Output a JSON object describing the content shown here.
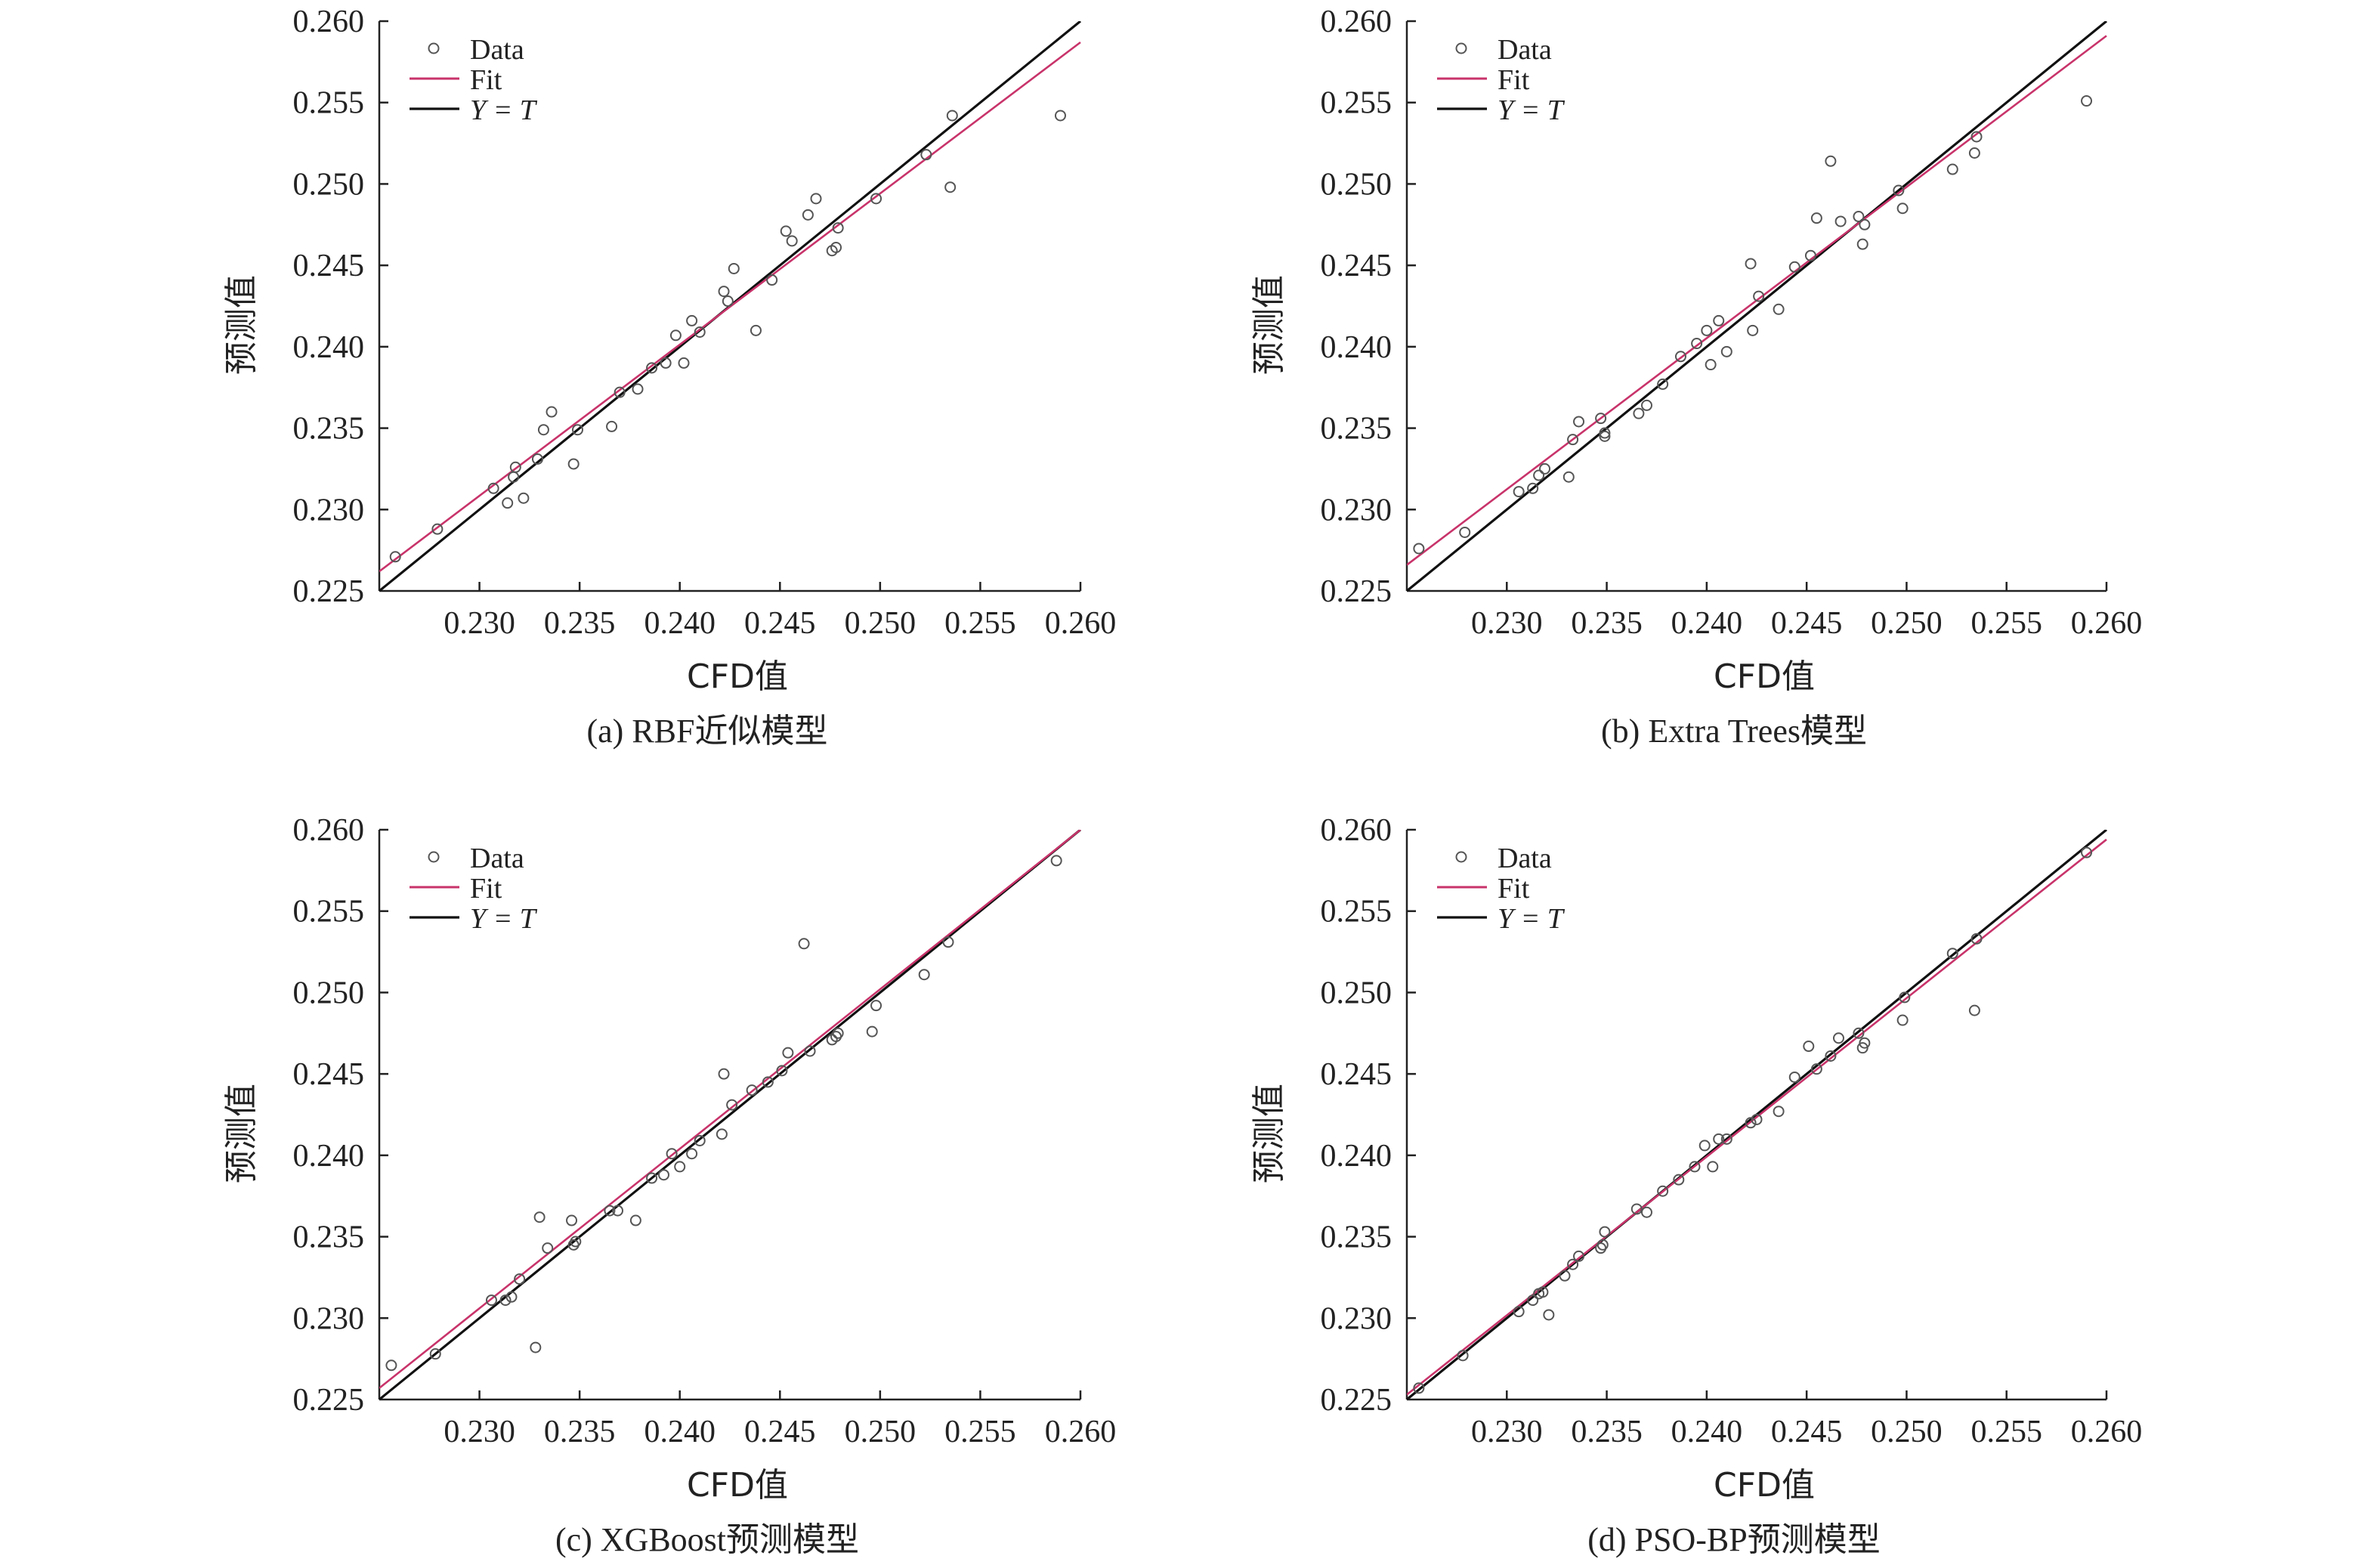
{
  "legend": {
    "data_label": "Data",
    "fit_label": "Fit",
    "yt_label": "Y = T"
  },
  "colors": {
    "fit": "#c8336a",
    "identity": "#111111",
    "points": "#555555"
  },
  "chart_data": [
    {
      "type": "scatter",
      "caption": "(a) RBF近似模型",
      "xlabel": "CFD值",
      "ylabel": "预测值",
      "xlim": [
        0.225,
        0.26
      ],
      "ylim": [
        0.225,
        0.26
      ],
      "xticks": [
        "0.230",
        "0.235",
        "0.240",
        "0.245",
        "0.250",
        "0.255",
        "0.260"
      ],
      "yticks": [
        "0.225",
        "0.230",
        "0.235",
        "0.240",
        "0.245",
        "0.250",
        "0.255",
        "0.260"
      ],
      "fit_line": {
        "x": [
          0.225,
          0.26
        ],
        "y": [
          0.2262,
          0.2587
        ]
      },
      "points": [
        [
          0.2258,
          0.2271
        ],
        [
          0.2279,
          0.2288
        ],
        [
          0.2307,
          0.2313
        ],
        [
          0.2314,
          0.2304
        ],
        [
          0.2317,
          0.232
        ],
        [
          0.2318,
          0.2326
        ],
        [
          0.2322,
          0.2307
        ],
        [
          0.2329,
          0.2331
        ],
        [
          0.2332,
          0.2349
        ],
        [
          0.2336,
          0.236
        ],
        [
          0.2347,
          0.2328
        ],
        [
          0.2349,
          0.2349
        ],
        [
          0.2366,
          0.2351
        ],
        [
          0.237,
          0.2372
        ],
        [
          0.2379,
          0.2374
        ],
        [
          0.2386,
          0.2387
        ],
        [
          0.2393,
          0.239
        ],
        [
          0.2398,
          0.2407
        ],
        [
          0.2402,
          0.239
        ],
        [
          0.2406,
          0.2416
        ],
        [
          0.241,
          0.2409
        ],
        [
          0.2422,
          0.2434
        ],
        [
          0.2424,
          0.2428
        ],
        [
          0.2427,
          0.2448
        ],
        [
          0.2438,
          0.241
        ],
        [
          0.2446,
          0.2441
        ],
        [
          0.2453,
          0.2471
        ],
        [
          0.2456,
          0.2465
        ],
        [
          0.2464,
          0.2481
        ],
        [
          0.2468,
          0.2491
        ],
        [
          0.2476,
          0.2459
        ],
        [
          0.2478,
          0.2461
        ],
        [
          0.2479,
          0.2473
        ],
        [
          0.2498,
          0.2491
        ],
        [
          0.2523,
          0.2518
        ],
        [
          0.2535,
          0.2498
        ],
        [
          0.2536,
          0.2542
        ],
        [
          0.259,
          0.2542
        ]
      ]
    },
    {
      "type": "scatter",
      "caption": "(b) Extra Trees模型",
      "xlabel": "CFD值",
      "ylabel": "预测值",
      "xlim": [
        0.225,
        0.26
      ],
      "ylim": [
        0.225,
        0.26
      ],
      "xticks": [
        "0.230",
        "0.235",
        "0.240",
        "0.245",
        "0.250",
        "0.255",
        "0.260"
      ],
      "yticks": [
        "0.225",
        "0.230",
        "0.235",
        "0.240",
        "0.245",
        "0.250",
        "0.255",
        "0.260"
      ],
      "fit_line": {
        "x": [
          0.225,
          0.26
        ],
        "y": [
          0.2266,
          0.2591
        ]
      },
      "points": [
        [
          0.2256,
          0.2276
        ],
        [
          0.2279,
          0.2286
        ],
        [
          0.2306,
          0.2311
        ],
        [
          0.2313,
          0.2313
        ],
        [
          0.2316,
          0.2321
        ],
        [
          0.2319,
          0.2325
        ],
        [
          0.2331,
          0.232
        ],
        [
          0.2333,
          0.2343
        ],
        [
          0.2336,
          0.2354
        ],
        [
          0.2347,
          0.2356
        ],
        [
          0.2349,
          0.2347
        ],
        [
          0.2349,
          0.2345
        ],
        [
          0.2366,
          0.2359
        ],
        [
          0.237,
          0.2364
        ],
        [
          0.2378,
          0.2377
        ],
        [
          0.2387,
          0.2394
        ],
        [
          0.2395,
          0.2402
        ],
        [
          0.24,
          0.241
        ],
        [
          0.2402,
          0.2389
        ],
        [
          0.2406,
          0.2416
        ],
        [
          0.241,
          0.2397
        ],
        [
          0.2422,
          0.2451
        ],
        [
          0.2423,
          0.241
        ],
        [
          0.2426,
          0.2431
        ],
        [
          0.2436,
          0.2423
        ],
        [
          0.2444,
          0.2449
        ],
        [
          0.2452,
          0.2456
        ],
        [
          0.2455,
          0.2479
        ],
        [
          0.2462,
          0.2514
        ],
        [
          0.2467,
          0.2477
        ],
        [
          0.2476,
          0.248
        ],
        [
          0.2478,
          0.2463
        ],
        [
          0.2479,
          0.2475
        ],
        [
          0.2496,
          0.2496
        ],
        [
          0.2498,
          0.2485
        ],
        [
          0.2523,
          0.2509
        ],
        [
          0.2534,
          0.2519
        ],
        [
          0.2535,
          0.2529
        ],
        [
          0.259,
          0.2551
        ]
      ]
    },
    {
      "type": "scatter",
      "caption": "(c) XGBoost预测模型",
      "xlabel": "CFD值",
      "ylabel": "预测值",
      "xlim": [
        0.225,
        0.26
      ],
      "ylim": [
        0.225,
        0.26
      ],
      "xticks": [
        "0.230",
        "0.235",
        "0.240",
        "0.245",
        "0.250",
        "0.255",
        "0.260"
      ],
      "yticks": [
        "0.225",
        "0.230",
        "0.235",
        "0.240",
        "0.245",
        "0.250",
        "0.255",
        "0.260"
      ],
      "fit_line": {
        "x": [
          0.225,
          0.26
        ],
        "y": [
          0.2257,
          0.26
        ]
      },
      "points": [
        [
          0.2256,
          0.2271
        ],
        [
          0.2278,
          0.2278
        ],
        [
          0.2306,
          0.2311
        ],
        [
          0.2313,
          0.2311
        ],
        [
          0.2316,
          0.2313
        ],
        [
          0.232,
          0.2324
        ],
        [
          0.2328,
          0.2282
        ],
        [
          0.233,
          0.2362
        ],
        [
          0.2334,
          0.2343
        ],
        [
          0.2346,
          0.236
        ],
        [
          0.2347,
          0.2345
        ],
        [
          0.2348,
          0.2347
        ],
        [
          0.2365,
          0.2366
        ],
        [
          0.2369,
          0.2366
        ],
        [
          0.2378,
          0.236
        ],
        [
          0.2386,
          0.2386
        ],
        [
          0.2392,
          0.2388
        ],
        [
          0.2396,
          0.2401
        ],
        [
          0.24,
          0.2393
        ],
        [
          0.2406,
          0.2401
        ],
        [
          0.241,
          0.2409
        ],
        [
          0.2421,
          0.2413
        ],
        [
          0.2422,
          0.245
        ],
        [
          0.2426,
          0.2431
        ],
        [
          0.2436,
          0.244
        ],
        [
          0.2444,
          0.2445
        ],
        [
          0.2451,
          0.2452
        ],
        [
          0.2454,
          0.2463
        ],
        [
          0.2462,
          0.253
        ],
        [
          0.2465,
          0.2464
        ],
        [
          0.2476,
          0.2471
        ],
        [
          0.2478,
          0.2473
        ],
        [
          0.2479,
          0.2475
        ],
        [
          0.2496,
          0.2476
        ],
        [
          0.2498,
          0.2492
        ],
        [
          0.2522,
          0.2511
        ],
        [
          0.2534,
          0.2531
        ],
        [
          0.2588,
          0.2581
        ]
      ]
    },
    {
      "type": "scatter",
      "caption": "(d) PSO-BP预测模型",
      "xlabel": "CFD值",
      "ylabel": "预测值",
      "xlim": [
        0.225,
        0.26
      ],
      "ylim": [
        0.225,
        0.26
      ],
      "xticks": [
        "0.230",
        "0.235",
        "0.240",
        "0.245",
        "0.250",
        "0.255",
        "0.260"
      ],
      "yticks": [
        "0.225",
        "0.230",
        "0.235",
        "0.240",
        "0.245",
        "0.250",
        "0.255",
        "0.260"
      ],
      "fit_line": {
        "x": [
          0.225,
          0.26
        ],
        "y": [
          0.2253,
          0.2594
        ]
      },
      "points": [
        [
          0.2256,
          0.2257
        ],
        [
          0.2278,
          0.2277
        ],
        [
          0.2306,
          0.2304
        ],
        [
          0.2313,
          0.2311
        ],
        [
          0.2316,
          0.2315
        ],
        [
          0.2318,
          0.2316
        ],
        [
          0.2321,
          0.2302
        ],
        [
          0.2329,
          0.2326
        ],
        [
          0.2333,
          0.2333
        ],
        [
          0.2336,
          0.2338
        ],
        [
          0.2347,
          0.2343
        ],
        [
          0.2348,
          0.2345
        ],
        [
          0.2349,
          0.2353
        ],
        [
          0.2365,
          0.2367
        ],
        [
          0.237,
          0.2365
        ],
        [
          0.2378,
          0.2378
        ],
        [
          0.2386,
          0.2385
        ],
        [
          0.2394,
          0.2393
        ],
        [
          0.2399,
          0.2406
        ],
        [
          0.2403,
          0.2393
        ],
        [
          0.2406,
          0.241
        ],
        [
          0.241,
          0.241
        ],
        [
          0.2422,
          0.242
        ],
        [
          0.2425,
          0.2422
        ],
        [
          0.2436,
          0.2427
        ],
        [
          0.2444,
          0.2448
        ],
        [
          0.2451,
          0.2467
        ],
        [
          0.2455,
          0.2453
        ],
        [
          0.2462,
          0.2461
        ],
        [
          0.2466,
          0.2472
        ],
        [
          0.2476,
          0.2475
        ],
        [
          0.2478,
          0.2466
        ],
        [
          0.2479,
          0.2469
        ],
        [
          0.2498,
          0.2483
        ],
        [
          0.2499,
          0.2497
        ],
        [
          0.2523,
          0.2524
        ],
        [
          0.2534,
          0.2489
        ],
        [
          0.2535,
          0.2533
        ],
        [
          0.259,
          0.2586
        ]
      ]
    }
  ]
}
